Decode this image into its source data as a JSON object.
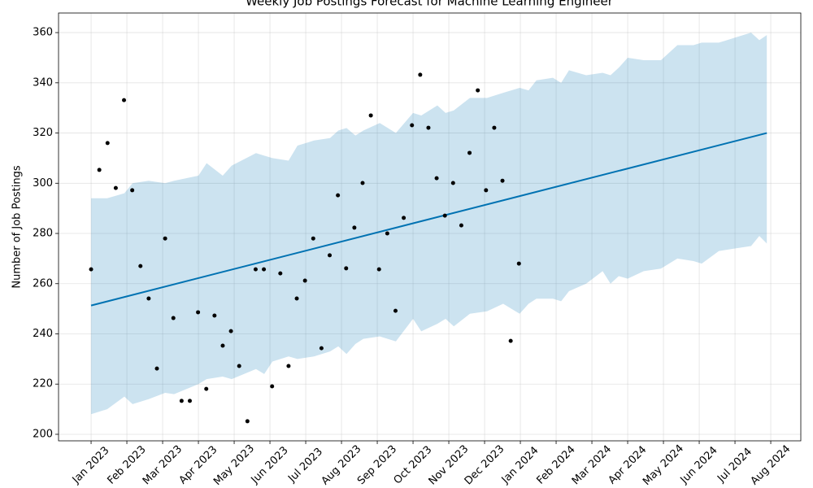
{
  "chart_data": {
    "type": "line",
    "title": "Weekly Job Postings Forecast for Machine Learning Engineer",
    "y_label": "Number of Job Postings",
    "grid": true,
    "xlim": [
      -0.91,
      19.84
    ],
    "ylim": [
      197.4,
      367.8
    ],
    "xticks": [
      {
        "value": 0,
        "label": "Jan 2023"
      },
      {
        "value": 1,
        "label": "Feb 2023"
      },
      {
        "value": 2,
        "label": "Mar 2023"
      },
      {
        "value": 3,
        "label": "Apr 2023"
      },
      {
        "value": 4,
        "label": "May 2023"
      },
      {
        "value": 5,
        "label": "Jun 2023"
      },
      {
        "value": 6,
        "label": "Jul 2023"
      },
      {
        "value": 7,
        "label": "Aug 2023"
      },
      {
        "value": 8,
        "label": "Sep 2023"
      },
      {
        "value": 9,
        "label": "Oct 2023"
      },
      {
        "value": 10,
        "label": "Nov 2023"
      },
      {
        "value": 11,
        "label": "Dec 2023"
      },
      {
        "value": 12,
        "label": "Jan 2024"
      },
      {
        "value": 13,
        "label": "Feb 2024"
      },
      {
        "value": 14,
        "label": "Mar 2024"
      },
      {
        "value": 15,
        "label": "Apr 2024"
      },
      {
        "value": 16,
        "label": "May 2024"
      },
      {
        "value": 17,
        "label": "Jun 2024"
      },
      {
        "value": 18,
        "label": "Jul 2024"
      },
      {
        "value": 19,
        "label": "Aug 2024"
      }
    ],
    "yticks": [
      200,
      220,
      240,
      260,
      280,
      300,
      320,
      340,
      360
    ],
    "series": [
      {
        "type": "band",
        "color": "#0072b2",
        "x": [
          0,
          0.45,
          0.93,
          1.16,
          1.61,
          2.07,
          2.32,
          3.0,
          3.23,
          3.68,
          3.93,
          4.61,
          4.84,
          5.07,
          5.52,
          5.77,
          6.23,
          6.68,
          6.91,
          7.14,
          7.39,
          7.61,
          8.07,
          8.52,
          9.0,
          9.23,
          9.68,
          9.91,
          10.14,
          10.59,
          11.07,
          11.52,
          11.98,
          12.23,
          12.45,
          12.91,
          13.14,
          13.36,
          13.84,
          14.3,
          14.52,
          14.75,
          15.0,
          15.45,
          15.93,
          16.39,
          16.84,
          17.07,
          17.55,
          18.0,
          18.45,
          18.68,
          18.89
        ],
        "upper": [
          294,
          294,
          296,
          300,
          301,
          300,
          301,
          303,
          308,
          303,
          307,
          312,
          311,
          310,
          309,
          315,
          317,
          318,
          321,
          322,
          319,
          321,
          324,
          320,
          328,
          327,
          331,
          328,
          329,
          334,
          334,
          336,
          338,
          337,
          341,
          342,
          340,
          345,
          343,
          344,
          343,
          346,
          350,
          349,
          349,
          355,
          355,
          356,
          356,
          358,
          360,
          357,
          359
        ],
        "lower": [
          208,
          210,
          215,
          212,
          214,
          216.5,
          216,
          220,
          222,
          223,
          222,
          226,
          224,
          229,
          231,
          230,
          231,
          233,
          235,
          232,
          236,
          238,
          239,
          237,
          246,
          241,
          244,
          246,
          243,
          248,
          249,
          252,
          248,
          252,
          254,
          254,
          253,
          257,
          260,
          265,
          260,
          263,
          262,
          265,
          266,
          270,
          269,
          268,
          273,
          274,
          275,
          279,
          276
        ]
      },
      {
        "type": "line",
        "color": "#0072b2",
        "x": [
          0,
          18.89
        ],
        "values": [
          251.3,
          320
        ]
      },
      {
        "type": "scatter",
        "color": "#000000",
        "x": [
          0,
          0.23,
          0.46,
          0.69,
          0.92,
          1.15,
          1.38,
          1.61,
          1.84,
          2.07,
          2.3,
          2.53,
          2.76,
          2.99,
          3.22,
          3.45,
          3.68,
          3.91,
          4.14,
          4.37,
          4.6,
          4.83,
          5.06,
          5.29,
          5.52,
          5.75,
          5.98,
          6.21,
          6.44,
          6.67,
          6.9,
          7.13,
          7.36,
          7.59,
          7.82,
          8.05,
          8.28,
          8.51,
          8.74,
          8.97,
          9.2,
          9.43,
          9.66,
          9.89,
          10.12,
          10.35,
          10.58,
          10.81,
          11.04,
          11.27,
          11.5,
          11.73,
          11.96
        ],
        "values": [
          265.7,
          305.3,
          316,
          298.1,
          333.1,
          297.2,
          267,
          254.1,
          226.2,
          278,
          246.3,
          213.3,
          213.3,
          248.6,
          218.1,
          247.3,
          235.3,
          241.1,
          227.2,
          205.2,
          265.7,
          265.7,
          219.1,
          264.1,
          227.2,
          254.1,
          261.2,
          278,
          234.3,
          271.3,
          295.2,
          266.1,
          282.3,
          300.1,
          327,
          265.7,
          280,
          249.2,
          286.2,
          323.1,
          343.2,
          322.1,
          302,
          287.1,
          300.1,
          283.2,
          312.1,
          337,
          297.2,
          322.1,
          301,
          237.2,
          268
        ]
      }
    ]
  }
}
